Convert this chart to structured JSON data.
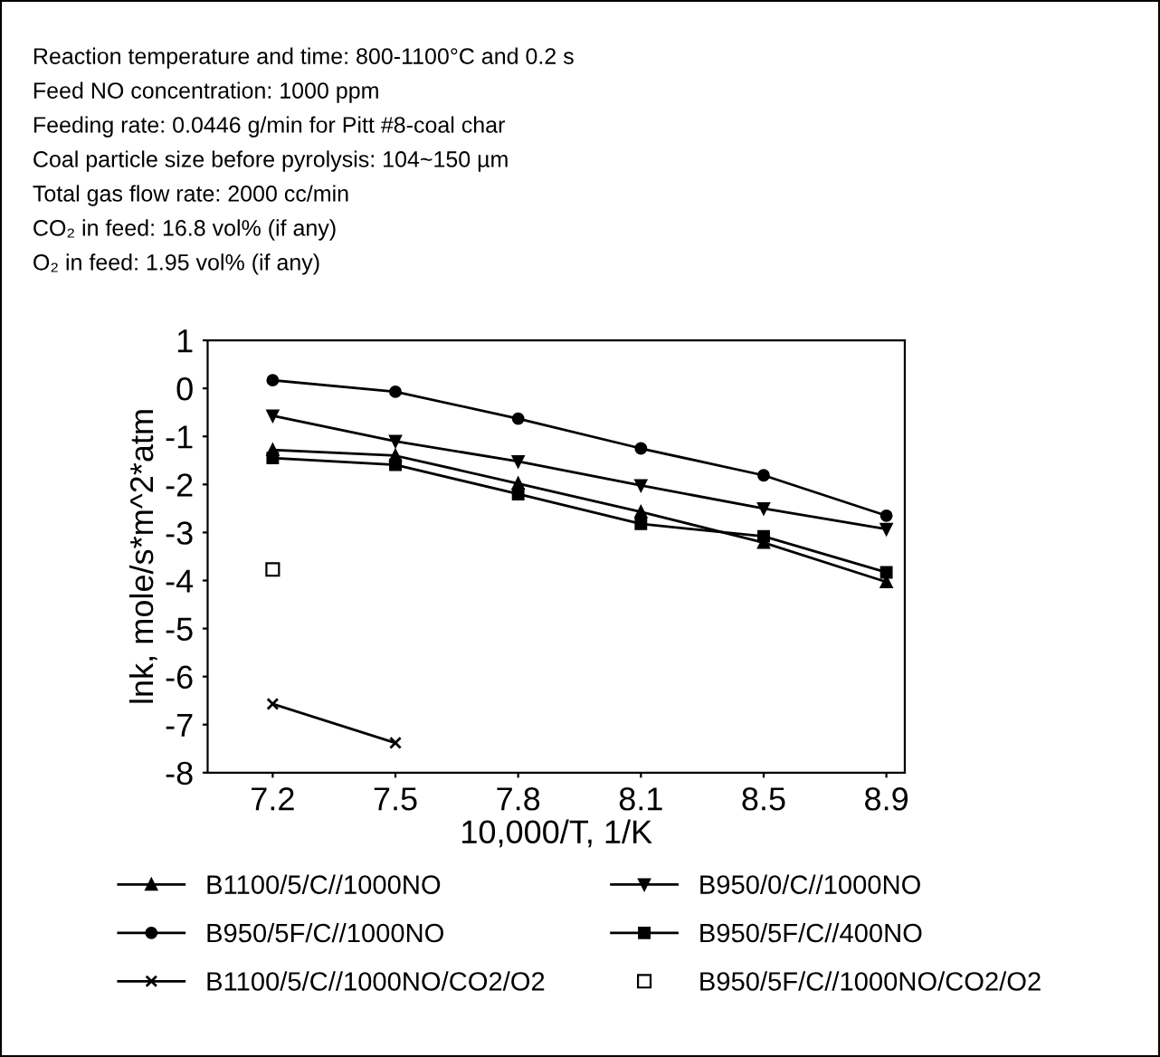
{
  "chart_data": {
    "type": "line",
    "annotations": [
      "Reaction temperature and time: 800-1100°C and 0.2 s",
      "Feed NO concentration: 1000 ppm",
      "Feeding rate: 0.0446 g/min for Pitt #8-coal char",
      "Coal particle size before pyrolysis: 104~150 µm",
      "Total gas flow rate: 2000 cc/min",
      "CO₂ in feed: 16.8 vol% (if any)",
      "O₂ in feed: 1.95 vol% (if any)"
    ],
    "xlabel": "10,000/T, 1/K",
    "ylabel": "lnk, mole/s*m^2*atm",
    "categories": [
      "7.2",
      "7.5",
      "7.8",
      "8.1",
      "8.5",
      "8.9"
    ],
    "ylim": [
      -8,
      1
    ],
    "yticks": [
      -8,
      -7,
      -6,
      -5,
      -4,
      -3,
      -2,
      -1,
      0,
      1
    ],
    "grid": false,
    "legend": "bottom",
    "series": [
      {
        "name": "B1100/5/C//1000NO",
        "color": "#000000",
        "marker": "triangle",
        "values": [
          -1.28,
          -1.4,
          -1.98,
          -2.57,
          -3.21,
          -4.03
        ]
      },
      {
        "name": "B950/0/C//1000NO",
        "color": "#000000",
        "marker": "triangle_down",
        "values": [
          -0.57,
          -1.1,
          -1.52,
          -2.02,
          -2.5,
          -2.93
        ]
      },
      {
        "name": "B950/5F/C//1000NO",
        "color": "#000000",
        "marker": "circle",
        "values": [
          0.17,
          -0.07,
          -0.63,
          -1.25,
          -1.81,
          -2.65
        ]
      },
      {
        "name": "B950/5F/C//400NO",
        "color": "#000000",
        "marker": "square",
        "values": [
          -1.45,
          -1.59,
          -2.2,
          -2.82,
          -3.08,
          -3.83
        ]
      },
      {
        "name": "B1100/5/C//1000NO/CO2/O2",
        "color": "#000000",
        "marker": "cross",
        "values": [
          -6.57,
          -7.38,
          null,
          null,
          null,
          null
        ]
      },
      {
        "name": "B950/5F/C//1000NO/CO2/O2",
        "type": "scatter",
        "color": "#000000",
        "marker": "square",
        "values": [
          -3.77,
          null,
          null,
          null,
          null,
          null
        ]
      }
    ]
  }
}
